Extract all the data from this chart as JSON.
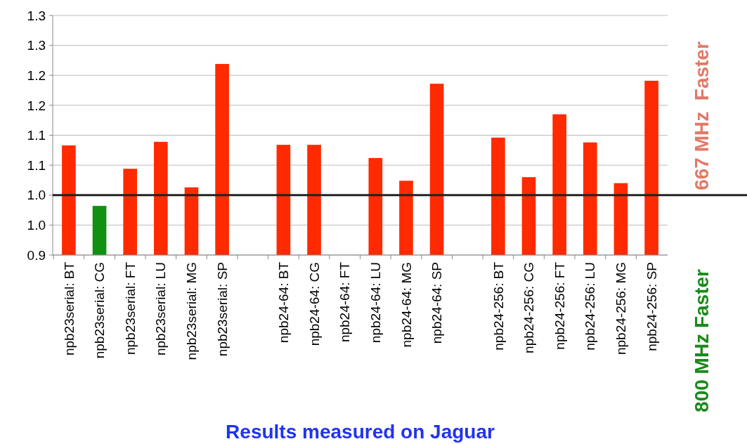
{
  "chart_data": {
    "type": "bar",
    "xlabel": "Results measured on Jaguar",
    "categories": [
      "npb23serial: BT",
      "npb23serial: CG",
      "npb23serial: FT",
      "npb23serial: LU",
      "npb23serial: MG",
      "npb23serial: SP",
      null,
      "npb24-64: BT",
      "npb24-64: CG",
      "npb24-64: FT",
      "npb24-64: LU",
      "npb24-64: MG",
      "npb24-64: SP",
      null,
      "npb24-256: BT",
      "npb24-256: CG",
      "npb24-256: FT",
      "npb24-256: LU",
      "npb24-256: MG",
      "npb24-256: SP"
    ],
    "values": [
      1.083,
      0.982,
      1.044,
      1.089,
      1.013,
      1.219,
      null,
      1.084,
      1.084,
      null,
      1.062,
      1.024,
      1.186,
      null,
      1.096,
      1.03,
      1.135,
      1.088,
      1.02,
      1.191
    ],
    "colors": [
      "#ff2a00",
      "#119111",
      "#ff2a00",
      "#ff2a00",
      "#ff2a00",
      "#ff2a00",
      null,
      "#ff2a00",
      "#ff2a00",
      null,
      "#ff2a00",
      "#ff2a00",
      "#ff2a00",
      null,
      "#ff2a00",
      "#ff2a00",
      "#ff2a00",
      "#ff2a00",
      "#ff2a00",
      "#ff2a00"
    ],
    "ylim": [
      0.9,
      1.3
    ],
    "yticks": [
      {
        "value": 0.9,
        "label": "0.9"
      },
      {
        "value": 0.95,
        "label": "1.0"
      },
      {
        "value": 1.0,
        "label": "1.0"
      },
      {
        "value": 1.05,
        "label": "1.1"
      },
      {
        "value": 1.1,
        "label": "1.1"
      },
      {
        "value": 1.15,
        "label": "1.2"
      },
      {
        "value": 1.2,
        "label": "1.2"
      },
      {
        "value": 1.25,
        "label": "1.3"
      },
      {
        "value": 1.3,
        "label": "1.3"
      }
    ],
    "grid": "y",
    "ref_lines": [
      {
        "axis": "y",
        "value": 1.0,
        "label": null,
        "color": "#222222"
      }
    ],
    "annotations": [
      "667 MHz  Faster",
      "800 MHz Faster"
    ]
  }
}
